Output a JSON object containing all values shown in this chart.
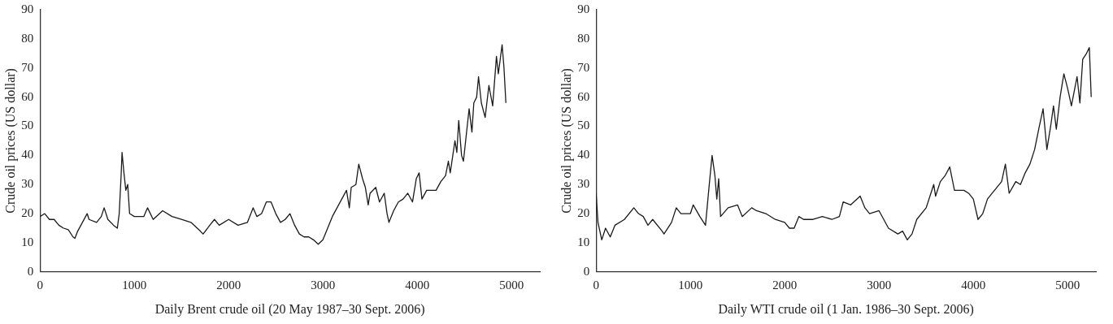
{
  "chart_data": [
    {
      "type": "line",
      "xlabel": "Daily Brent crude oil (20 May 1987–30 Sept. 2006)",
      "ylabel": "Crude oil prices (US dollar)",
      "xlim": [
        0,
        5300
      ],
      "xticks": [
        0,
        1000,
        2000,
        3000,
        4000,
        5000
      ],
      "ylim": [
        0,
        90
      ],
      "yticks": [
        0,
        10,
        20,
        30,
        40,
        50,
        60,
        70,
        80,
        90
      ],
      "grid": false,
      "legend": false,
      "marker": "none",
      "line_style": "solid",
      "x": [
        0,
        50,
        100,
        150,
        200,
        250,
        300,
        350,
        370,
        400,
        450,
        500,
        520,
        600,
        650,
        680,
        720,
        780,
        820,
        840,
        860,
        870,
        890,
        910,
        930,
        950,
        1000,
        1100,
        1140,
        1200,
        1300,
        1400,
        1500,
        1600,
        1700,
        1730,
        1800,
        1850,
        1900,
        2000,
        2100,
        2200,
        2260,
        2300,
        2350,
        2400,
        2450,
        2500,
        2550,
        2600,
        2650,
        2700,
        2750,
        2800,
        2850,
        2900,
        2950,
        3000,
        3050,
        3100,
        3150,
        3200,
        3250,
        3280,
        3300,
        3350,
        3380,
        3420,
        3450,
        3480,
        3500,
        3560,
        3600,
        3650,
        3680,
        3700,
        3750,
        3800,
        3850,
        3900,
        3950,
        3990,
        4020,
        4050,
        4100,
        4150,
        4200,
        4250,
        4300,
        4330,
        4350,
        4400,
        4420,
        4440,
        4470,
        4490,
        4520,
        4550,
        4580,
        4600,
        4630,
        4650,
        4680,
        4720,
        4760,
        4800,
        4840,
        4860,
        4900,
        4920,
        4940
      ],
      "series": [
        {
          "color": "#1a1a1a",
          "values": [
            19,
            20,
            18,
            18,
            16,
            15,
            14.5,
            12,
            11.5,
            14,
            17,
            20,
            18,
            17,
            19,
            22,
            18,
            16,
            15,
            20,
            33,
            41,
            34,
            28,
            30,
            20,
            19,
            19,
            22,
            18,
            21,
            19,
            18,
            17,
            14,
            13,
            16,
            18,
            16,
            18,
            16,
            17,
            22,
            19,
            20,
            24,
            24,
            20,
            17,
            18,
            20,
            16,
            13,
            12,
            12,
            11,
            9.5,
            11,
            15,
            19,
            22,
            25,
            28,
            22,
            29,
            30,
            37,
            32,
            29,
            23,
            27,
            29,
            24,
            27,
            20,
            17,
            21,
            24,
            25,
            27,
            24,
            32,
            34,
            25,
            28,
            28,
            28,
            31,
            33,
            38,
            34,
            45,
            41,
            52,
            40,
            38,
            47,
            56,
            48,
            58,
            60,
            67,
            58,
            53,
            64,
            57,
            74,
            68,
            78,
            70,
            58
          ]
        }
      ]
    },
    {
      "type": "line",
      "xlabel": "Daily WTI crude oil (1 Jan. 1986–30 Sept. 2006)",
      "ylabel": "Crude oil prices (US dollar)",
      "xlim": [
        0,
        5300
      ],
      "xticks": [
        0,
        1000,
        2000,
        3000,
        4000,
        5000
      ],
      "ylim": [
        0,
        90
      ],
      "yticks": [
        0,
        10,
        20,
        30,
        40,
        50,
        60,
        70,
        80,
        90
      ],
      "grid": false,
      "legend": false,
      "marker": "none",
      "line_style": "solid",
      "x": [
        0,
        20,
        60,
        100,
        150,
        200,
        300,
        400,
        450,
        500,
        550,
        600,
        700,
        720,
        800,
        850,
        900,
        1000,
        1030,
        1100,
        1160,
        1200,
        1230,
        1260,
        1280,
        1300,
        1320,
        1400,
        1500,
        1550,
        1650,
        1700,
        1800,
        1900,
        2000,
        2050,
        2100,
        2150,
        2200,
        2300,
        2400,
        2500,
        2580,
        2620,
        2700,
        2800,
        2850,
        2900,
        3000,
        3050,
        3100,
        3200,
        3250,
        3300,
        3350,
        3400,
        3500,
        3580,
        3600,
        3650,
        3700,
        3750,
        3800,
        3900,
        3950,
        4000,
        4050,
        4100,
        4150,
        4200,
        4300,
        4340,
        4380,
        4450,
        4500,
        4550,
        4600,
        4650,
        4700,
        4740,
        4780,
        4820,
        4850,
        4880,
        4920,
        4960,
        5000,
        5040,
        5100,
        5130,
        5160,
        5200,
        5230,
        5250
      ],
      "series": [
        {
          "color": "#1a1a1a",
          "values": [
            27,
            17,
            11,
            15,
            12,
            16,
            18,
            22,
            20,
            19,
            16,
            18,
            14,
            13,
            17,
            22,
            20,
            20,
            23,
            19,
            16,
            30,
            40,
            33,
            25,
            32,
            19,
            22,
            23,
            19,
            22,
            21,
            20,
            18,
            17,
            15,
            15,
            19,
            18,
            18,
            19,
            18,
            19,
            24,
            23,
            26,
            22,
            20,
            21,
            18,
            15,
            13,
            14,
            11,
            13,
            18,
            22,
            30,
            26,
            31,
            33,
            36,
            28,
            28,
            27,
            25,
            18,
            20,
            25,
            27,
            31,
            37,
            27,
            31,
            30,
            34,
            37,
            42,
            50,
            56,
            42,
            50,
            57,
            49,
            60,
            68,
            63,
            57,
            67,
            58,
            73,
            75,
            77,
            60
          ]
        }
      ]
    }
  ]
}
